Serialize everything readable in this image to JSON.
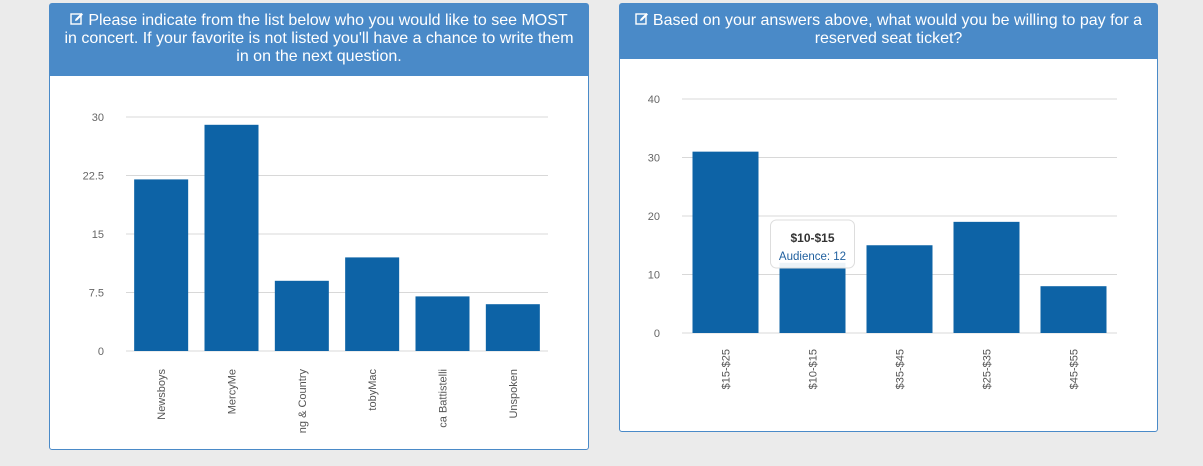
{
  "panels": [
    {
      "title": "Please indicate from the list below who you would like to see MOST in concert. If your favorite is not listed you'll have a chance to write them in on the next question.",
      "icon": "edit-icon"
    },
    {
      "title": "Based on your answers above, what would you be willing to pay for a reserved seat ticket?",
      "icon": "edit-icon"
    }
  ],
  "colors": {
    "bar": "#0d63a6",
    "header": "#4a8ac8"
  },
  "chart_data": [
    {
      "type": "bar",
      "categories": [
        "Newsboys",
        "MercyMe",
        "ng & Country",
        "tobyMac",
        "ca Battistelli",
        "Unspoken"
      ],
      "values": [
        22,
        29,
        9,
        12,
        7,
        6
      ],
      "ylim": [
        0,
        30
      ],
      "yticks": [
        "0",
        "7.5",
        "15",
        "22.5",
        "30"
      ],
      "grid": true
    },
    {
      "type": "bar",
      "categories": [
        "$15-$25",
        "$10-$15",
        "$35-$45",
        "$25-$35",
        "$45-$55"
      ],
      "values": [
        31,
        12,
        15,
        19,
        8
      ],
      "ylim": [
        0,
        40
      ],
      "yticks": [
        "0",
        "10",
        "20",
        "30",
        "40"
      ],
      "grid": true,
      "tooltip": {
        "title": "$10-$15",
        "body": "Audience: 12"
      }
    }
  ]
}
